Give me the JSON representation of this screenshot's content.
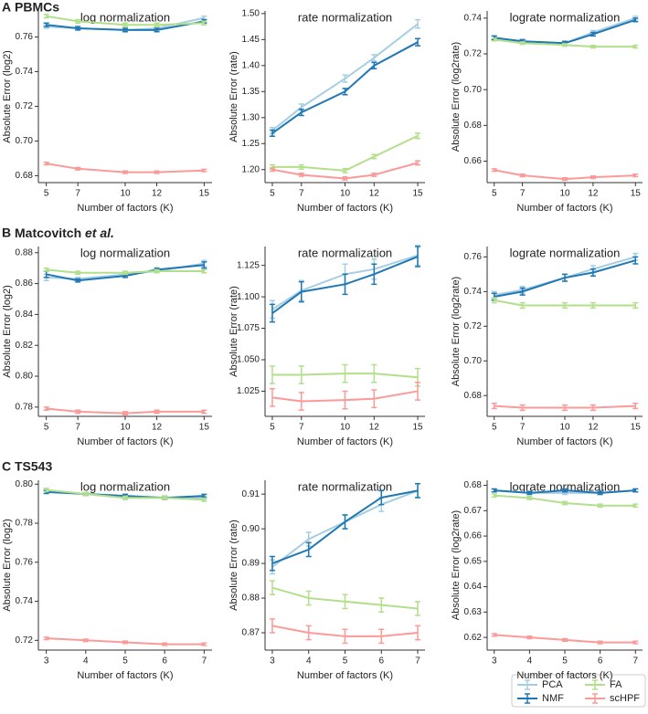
{
  "panels": [
    {
      "letter": "A",
      "title": "PBMCs"
    },
    {
      "letter": "B",
      "title": "Matcovitch",
      "title_italic": "et al."
    },
    {
      "letter": "C",
      "title": "TS543"
    }
  ],
  "legend": {
    "series": [
      {
        "name": "PCA",
        "color": "#a6cee3"
      },
      {
        "name": "NMF",
        "color": "#1f78b4"
      },
      {
        "name": "FA",
        "color": "#b2df8a"
      },
      {
        "name": "scHPF",
        "color": "#fb9a99"
      }
    ]
  },
  "chart_data": [
    {
      "type": "line",
      "title": "log normalization",
      "xlabel": "Number of factors (K)",
      "ylabel": "Absolute Error (log2)",
      "x": [
        5,
        7,
        10,
        12,
        15
      ],
      "xlim": [
        4.5,
        15.5
      ],
      "xticks": [
        5,
        7,
        10,
        12,
        15
      ],
      "ylim": [
        0.676,
        0.775
      ],
      "yticks": [
        0.68,
        {
          "value": 0.7,
          "label": "0.70"
        },
        0.72,
        0.74,
        0.76
      ],
      "series": [
        {
          "values": [
            0.766,
            0.765,
            0.764,
            0.765,
            0.771
          ],
          "errors": [
            0.001,
            0.001,
            0.001,
            0.001,
            0.001
          ]
        },
        {
          "values": [
            0.767,
            0.765,
            0.764,
            0.764,
            0.769
          ],
          "errors": [
            0.001,
            0.001,
            0.001,
            0.001,
            0.001
          ]
        },
        {
          "values": [
            0.772,
            0.769,
            0.767,
            0.767,
            0.768
          ],
          "errors": [
            0.001,
            0.001,
            0.001,
            0.001,
            0.001
          ]
        },
        {
          "values": [
            0.687,
            0.684,
            0.682,
            0.682,
            0.683
          ],
          "errors": [
            0.0007,
            0.0007,
            0.0007,
            0.0007,
            0.0007
          ]
        }
      ]
    },
    {
      "type": "line",
      "title": "rate normalization",
      "xlabel": "Number of factors (K)",
      "ylabel": "Absolute Error (rate)",
      "x": [
        5,
        7,
        10,
        12,
        15
      ],
      "xlim": [
        4.5,
        15.5
      ],
      "xticks": [
        5,
        7,
        10,
        12,
        15
      ],
      "ylim": [
        1.175,
        1.505
      ],
      "yticks": [
        {
          "value": 1.2,
          "label": "1.20"
        },
        1.25,
        {
          "value": 1.3,
          "label": "1.30"
        },
        1.35,
        {
          "value": 1.4,
          "label": "1.40"
        },
        1.45,
        {
          "value": 1.5,
          "label": "1.50"
        }
      ],
      "series": [
        {
          "values": [
            1.275,
            1.32,
            1.375,
            1.415,
            1.48
          ],
          "errors": [
            0.006,
            0.006,
            0.007,
            0.006,
            0.008
          ]
        },
        {
          "values": [
            1.27,
            1.31,
            1.35,
            1.4,
            1.445
          ],
          "errors": [
            0.006,
            0.006,
            0.006,
            0.006,
            0.007
          ]
        },
        {
          "values": [
            1.205,
            1.205,
            1.198,
            1.225,
            1.265
          ],
          "errors": [
            0.004,
            0.004,
            0.004,
            0.004,
            0.005
          ]
        },
        {
          "values": [
            1.2,
            1.19,
            1.183,
            1.19,
            1.213
          ],
          "errors": [
            0.003,
            0.003,
            0.003,
            0.003,
            0.004
          ]
        }
      ]
    },
    {
      "type": "line",
      "title": "lograte normalization",
      "xlabel": "Number of factors (K)",
      "ylabel": "Absolute Error (log2rate)",
      "x": [
        5,
        7,
        10,
        12,
        15
      ],
      "xlim": [
        4.5,
        15.5
      ],
      "xticks": [
        5,
        7,
        10,
        12,
        15
      ],
      "ylim": [
        0.648,
        0.744
      ],
      "yticks": [
        0.66,
        0.68,
        {
          "value": 0.7,
          "label": "0.70"
        },
        0.72,
        0.74
      ],
      "series": [
        {
          "values": [
            0.729,
            0.727,
            0.726,
            0.732,
            0.74
          ],
          "errors": [
            0.001,
            0.001,
            0.001,
            0.001,
            0.001
          ]
        },
        {
          "values": [
            0.729,
            0.727,
            0.726,
            0.731,
            0.739
          ],
          "errors": [
            0.001,
            0.001,
            0.001,
            0.001,
            0.001
          ]
        },
        {
          "values": [
            0.728,
            0.726,
            0.725,
            0.724,
            0.724
          ],
          "errors": [
            0.0007,
            0.0007,
            0.0007,
            0.0007,
            0.0007
          ]
        },
        {
          "values": [
            0.655,
            0.652,
            0.65,
            0.651,
            0.652
          ],
          "errors": [
            0.0007,
            0.0007,
            0.0007,
            0.0007,
            0.0007
          ]
        }
      ]
    },
    {
      "type": "line",
      "title": "log normalization",
      "xlabel": "Number of factors (K)",
      "ylabel": "Absolute Error (log2)",
      "x": [
        5,
        7,
        10,
        12,
        15
      ],
      "xlim": [
        4.5,
        15.5
      ],
      "xticks": [
        5,
        7,
        10,
        12,
        15
      ],
      "ylim": [
        0.774,
        0.884
      ],
      "yticks": [
        0.78,
        {
          "value": 0.8,
          "label": "0.80"
        },
        0.82,
        0.84,
        0.86,
        0.88
      ],
      "series": [
        {
          "values": [
            0.864,
            0.863,
            0.866,
            0.868,
            0.873
          ],
          "errors": [
            0.002,
            0.001,
            0.001,
            0.001,
            0.002
          ]
        },
        {
          "values": [
            0.866,
            0.862,
            0.865,
            0.869,
            0.872
          ],
          "errors": [
            0.002,
            0.001,
            0.001,
            0.001,
            0.002
          ]
        },
        {
          "values": [
            0.869,
            0.867,
            0.867,
            0.868,
            0.868
          ],
          "errors": [
            0.001,
            0.001,
            0.001,
            0.001,
            0.001
          ]
        },
        {
          "values": [
            0.779,
            0.777,
            0.776,
            0.777,
            0.777
          ],
          "errors": [
            0.001,
            0.001,
            0.001,
            0.001,
            0.001
          ]
        }
      ]
    },
    {
      "type": "line",
      "title": "rate normalization",
      "xlabel": "Number of factors (K)",
      "ylabel": "Absolute Error (rate)",
      "x": [
        5,
        7,
        10,
        12,
        15
      ],
      "xlim": [
        4.5,
        15.5
      ],
      "xticks": [
        5,
        7,
        10,
        12,
        15
      ],
      "ylim": [
        1.005,
        1.14
      ],
      "yticks": [
        1.025,
        {
          "value": 1.05,
          "label": "1.050"
        },
        1.075,
        {
          "value": 1.1,
          "label": "1.100"
        },
        1.125
      ],
      "series": [
        {
          "values": [
            1.09,
            1.105,
            1.118,
            1.122,
            1.133
          ],
          "errors": [
            0.007,
            0.008,
            0.008,
            0.008,
            0.008
          ]
        },
        {
          "values": [
            1.087,
            1.104,
            1.11,
            1.118,
            1.132
          ],
          "errors": [
            0.007,
            0.008,
            0.008,
            0.008,
            0.008
          ]
        },
        {
          "values": [
            1.038,
            1.038,
            1.039,
            1.039,
            1.036
          ],
          "errors": [
            0.007,
            0.007,
            0.007,
            0.007,
            0.007
          ]
        },
        {
          "values": [
            1.02,
            1.017,
            1.018,
            1.019,
            1.025
          ],
          "errors": [
            0.007,
            0.007,
            0.007,
            0.007,
            0.007
          ]
        }
      ]
    },
    {
      "type": "line",
      "title": "lograte normalization",
      "xlabel": "Number of factors (K)",
      "ylabel": "Absolute Error (log2rate)",
      "x": [
        5,
        7,
        10,
        12,
        15
      ],
      "xlim": [
        4.5,
        15.5
      ],
      "xticks": [
        5,
        7,
        10,
        12,
        15
      ],
      "ylim": [
        0.668,
        0.766
      ],
      "yticks": [
        0.68,
        {
          "value": 0.7,
          "label": "0.70"
        },
        0.72,
        0.74,
        0.76
      ],
      "series": [
        {
          "values": [
            0.738,
            0.741,
            0.748,
            0.753,
            0.76
          ],
          "errors": [
            0.002,
            0.002,
            0.002,
            0.002,
            0.002
          ]
        },
        {
          "values": [
            0.737,
            0.74,
            0.748,
            0.751,
            0.758
          ],
          "errors": [
            0.002,
            0.002,
            0.002,
            0.002,
            0.002
          ]
        },
        {
          "values": [
            0.735,
            0.732,
            0.732,
            0.732,
            0.732
          ],
          "errors": [
            0.0015,
            0.0015,
            0.0015,
            0.0015,
            0.0015
          ]
        },
        {
          "values": [
            0.674,
            0.673,
            0.673,
            0.673,
            0.674
          ],
          "errors": [
            0.0015,
            0.0015,
            0.0015,
            0.0015,
            0.0015
          ]
        }
      ]
    },
    {
      "type": "line",
      "title": "log normalization",
      "xlabel": "Number of factors (K)",
      "ylabel": "Absolute Error (log2)",
      "x": [
        3,
        4,
        5,
        6,
        7
      ],
      "xlim": [
        2.8,
        7.2
      ],
      "xticks": [
        3,
        4,
        5,
        6,
        7
      ],
      "ylim": [
        0.715,
        0.802
      ],
      "yticks": [
        0.72,
        0.74,
        0.76,
        0.78,
        {
          "value": 0.8,
          "label": "0.80"
        }
      ],
      "series": [
        {
          "values": [
            0.797,
            0.795,
            0.793,
            0.793,
            0.793
          ],
          "errors": [
            0.0008,
            0.0008,
            0.0008,
            0.0008,
            0.0008
          ]
        },
        {
          "values": [
            0.796,
            0.795,
            0.794,
            0.793,
            0.794
          ],
          "errors": [
            0.0008,
            0.0008,
            0.0008,
            0.0008,
            0.0008
          ]
        },
        {
          "values": [
            0.797,
            0.795,
            0.793,
            0.793,
            0.792
          ],
          "errors": [
            0.0008,
            0.0008,
            0.0008,
            0.0008,
            0.0008
          ]
        },
        {
          "values": [
            0.721,
            0.72,
            0.719,
            0.718,
            0.718
          ],
          "errors": [
            0.0006,
            0.0006,
            0.0006,
            0.0006,
            0.0006
          ]
        }
      ]
    },
    {
      "type": "line",
      "title": "rate normalization",
      "xlabel": "Number of factors (K)",
      "ylabel": "Absolute Error (rate)",
      "x": [
        3,
        4,
        5,
        6,
        7
      ],
      "xlim": [
        2.8,
        7.2
      ],
      "xticks": [
        3,
        4,
        5,
        6,
        7
      ],
      "ylim": [
        0.865,
        0.914
      ],
      "yticks": [
        0.87,
        0.88,
        0.89,
        {
          "value": 0.9,
          "label": "0.90"
        },
        0.91
      ],
      "series": [
        {
          "values": [
            0.889,
            0.897,
            0.902,
            0.907,
            0.911
          ],
          "errors": [
            0.002,
            0.002,
            0.002,
            0.002,
            0.002
          ]
        },
        {
          "values": [
            0.89,
            0.894,
            0.902,
            0.909,
            0.911
          ],
          "errors": [
            0.002,
            0.002,
            0.002,
            0.002,
            0.002
          ]
        },
        {
          "values": [
            0.883,
            0.88,
            0.879,
            0.878,
            0.877
          ],
          "errors": [
            0.002,
            0.002,
            0.002,
            0.002,
            0.002
          ]
        },
        {
          "values": [
            0.872,
            0.87,
            0.869,
            0.869,
            0.87
          ],
          "errors": [
            0.002,
            0.002,
            0.002,
            0.002,
            0.002
          ]
        }
      ]
    },
    {
      "type": "line",
      "title": "lograte normalization",
      "xlabel": "Number of factors (K)",
      "ylabel": "Absolute Error (log2rate)",
      "x": [
        3,
        4,
        5,
        6,
        7
      ],
      "xlim": [
        2.8,
        7.2
      ],
      "xticks": [
        3,
        4,
        5,
        6,
        7
      ],
      "ylim": [
        0.615,
        0.682
      ],
      "yticks": [
        0.62,
        0.63,
        0.64,
        0.65,
        0.66,
        0.67,
        0.68
      ],
      "series": [
        {
          "values": [
            0.678,
            0.677,
            0.677,
            0.677,
            0.678
          ],
          "errors": [
            0.0006,
            0.0006,
            0.0006,
            0.0006,
            0.0006
          ]
        },
        {
          "values": [
            0.678,
            0.677,
            0.678,
            0.677,
            0.678
          ],
          "errors": [
            0.0006,
            0.0006,
            0.0006,
            0.0006,
            0.0006
          ]
        },
        {
          "values": [
            0.676,
            0.675,
            0.673,
            0.672,
            0.672
          ],
          "errors": [
            0.0006,
            0.0006,
            0.0006,
            0.0006,
            0.0006
          ]
        },
        {
          "values": [
            0.621,
            0.62,
            0.619,
            0.618,
            0.618
          ],
          "errors": [
            0.0005,
            0.0005,
            0.0005,
            0.0005,
            0.0005
          ]
        }
      ]
    }
  ]
}
